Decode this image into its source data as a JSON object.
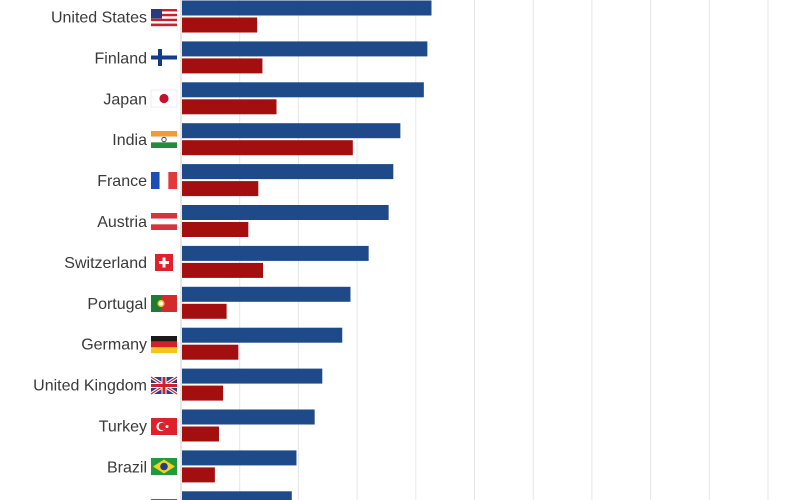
{
  "chart_data": {
    "type": "bar",
    "orientation": "horizontal",
    "title": "",
    "xlabel": "",
    "ylabel": "",
    "xlim": [
      0,
      105
    ],
    "grid": true,
    "grid_color": "#e6e6e6",
    "categories": [
      "United States",
      "Finland",
      "Japan",
      "India",
      "France",
      "Austria",
      "Switzerland",
      "Portugal",
      "Germany",
      "United Kingdom",
      "Turkey",
      "Brazil",
      ""
    ],
    "flag_icons": [
      "us-flag-icon",
      "finland-flag-icon",
      "japan-flag-icon",
      "india-flag-icon",
      "france-flag-icon",
      "austria-flag-icon",
      "switzerland-flag-icon",
      "portugal-flag-icon",
      "germany-flag-icon",
      "uk-flag-icon",
      "turkey-flag-icon",
      "brazil-flag-icon",
      "partial-flag-icon"
    ],
    "series": [
      {
        "color": "#1f4a8a",
        "values": [
          42.5,
          41.8,
          41.2,
          37.2,
          36.0,
          35.2,
          31.8,
          28.7,
          27.3,
          23.9,
          22.6,
          19.5,
          18.7
        ]
      },
      {
        "color": "#a30f0f",
        "values": [
          12.8,
          13.7,
          16.1,
          29.1,
          13.0,
          11.3,
          13.8,
          7.6,
          9.6,
          7.0,
          6.3,
          5.6,
          null
        ]
      }
    ]
  }
}
